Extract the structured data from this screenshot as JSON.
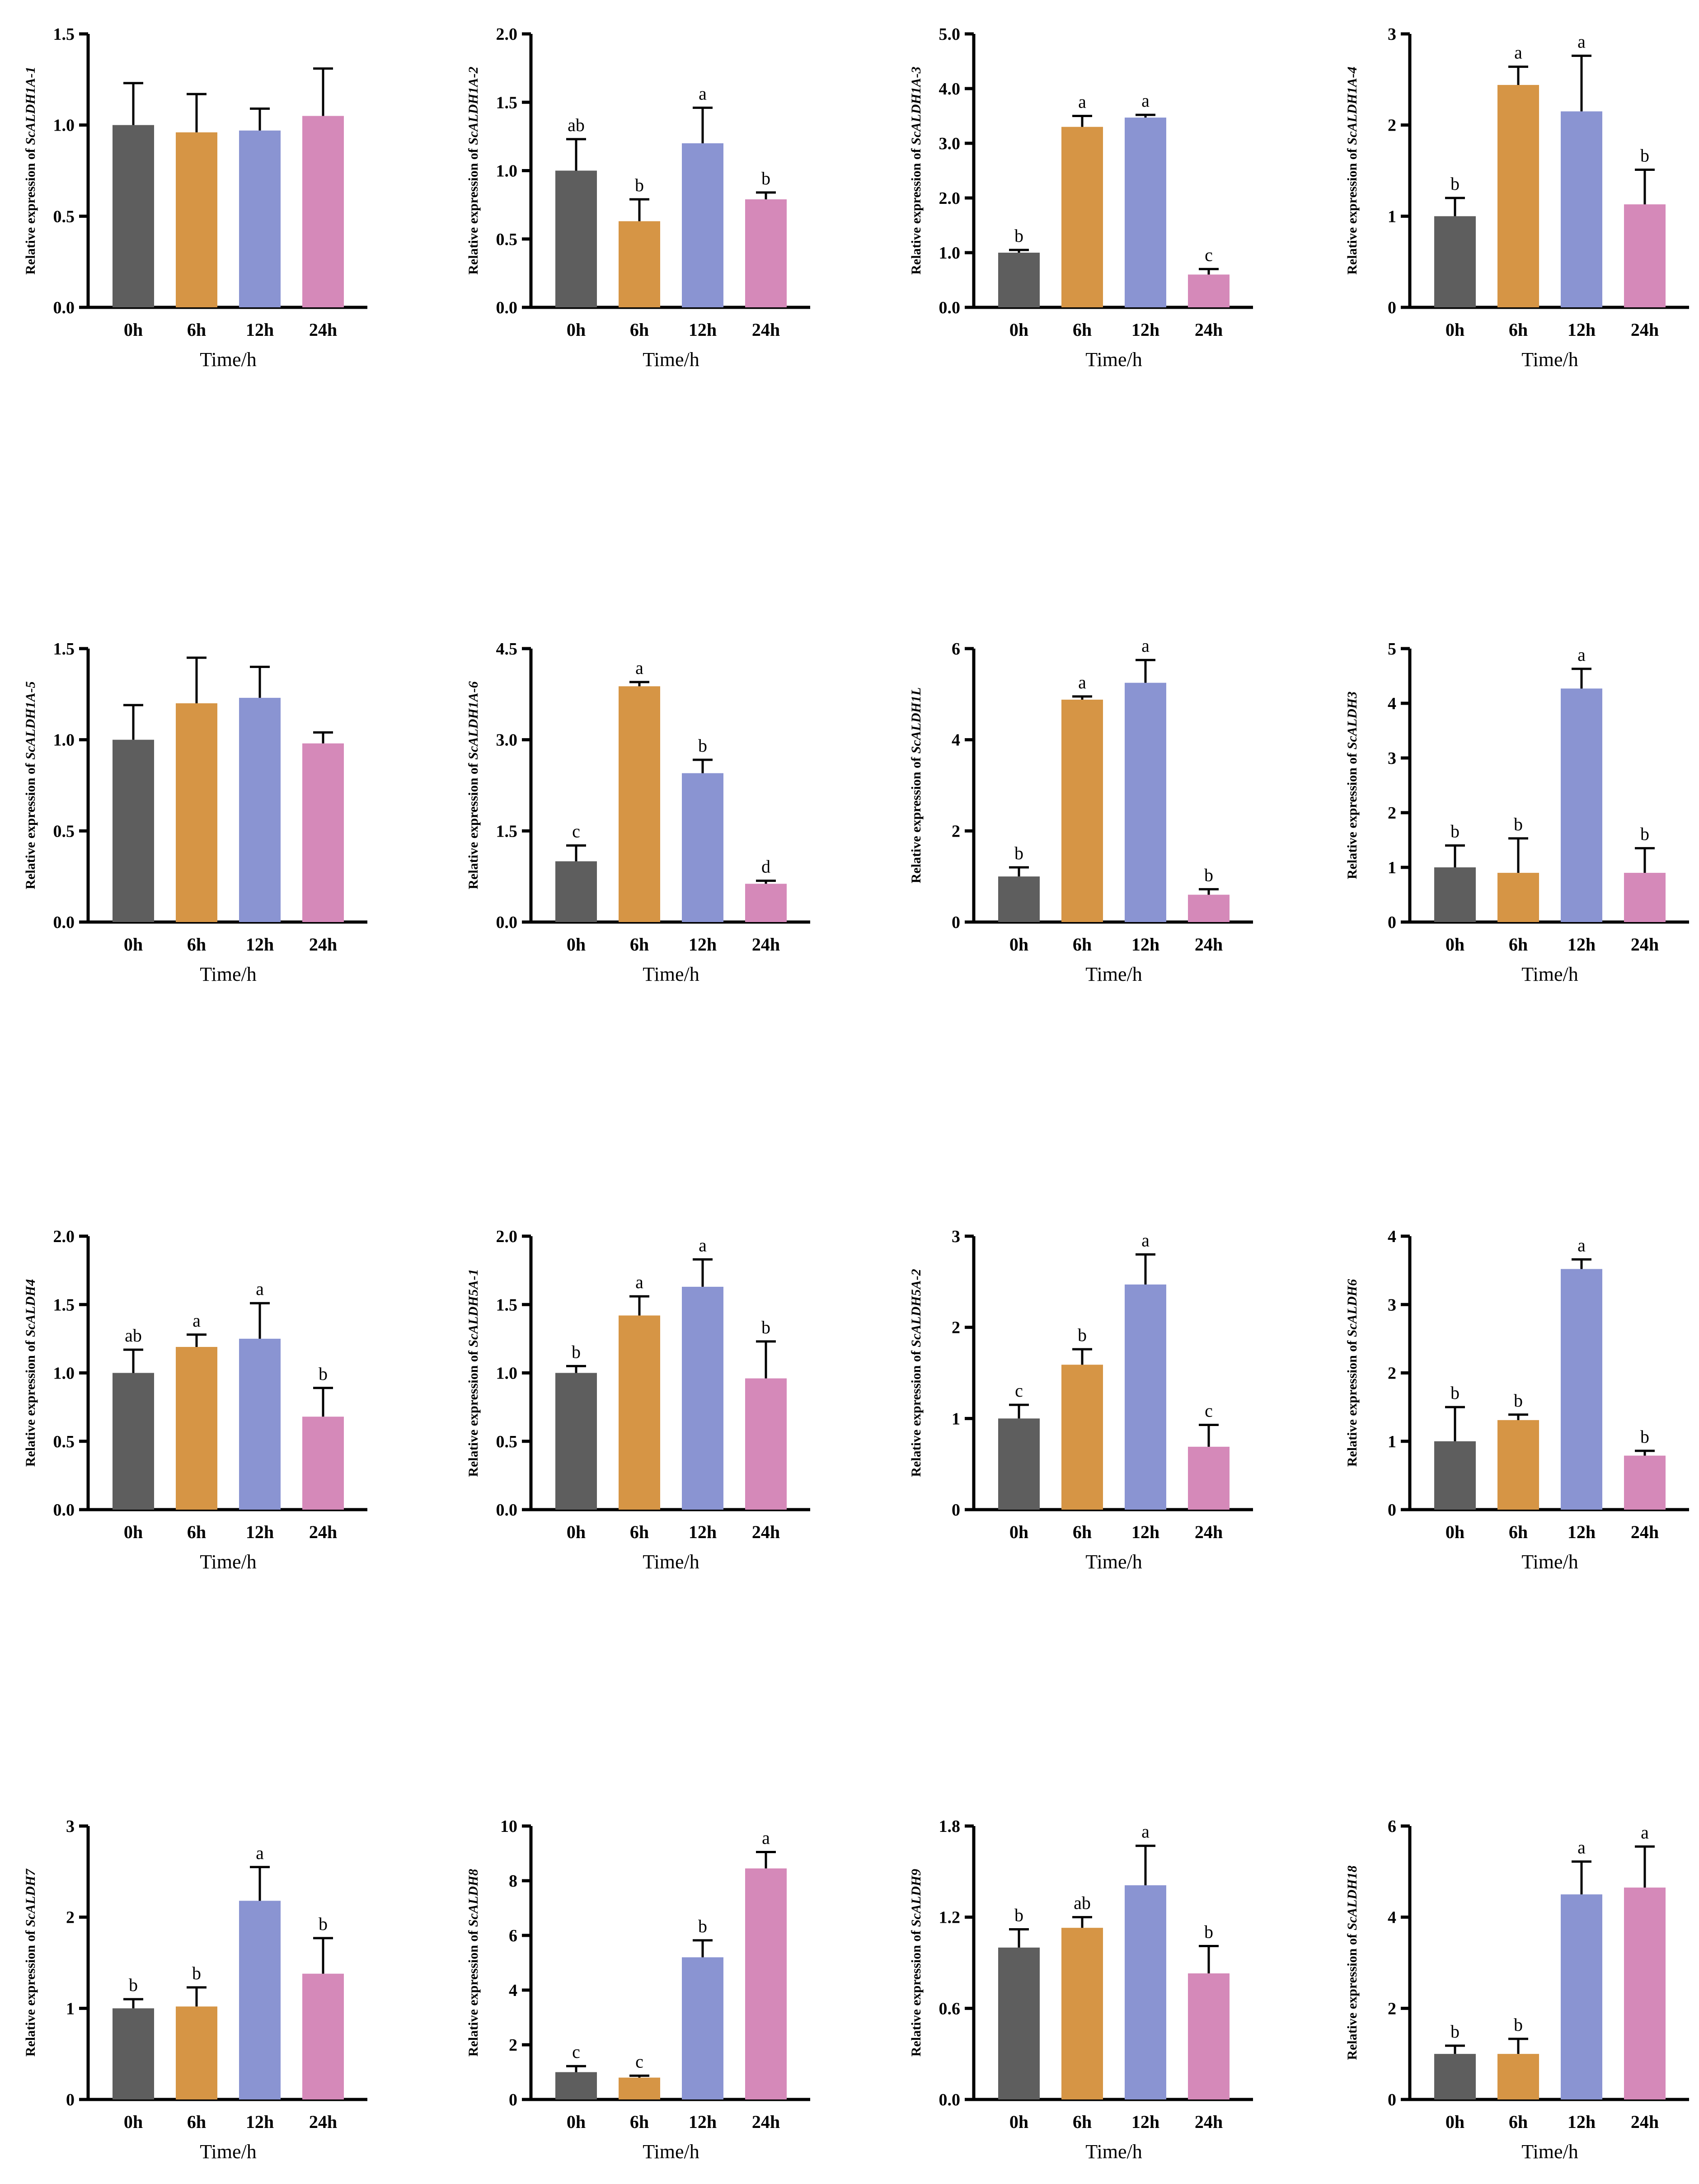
{
  "colors": [
    "#5e5e5e",
    "#d69545",
    "#8a94d2",
    "#d589b9"
  ],
  "chart_data": [
    {
      "type": "bar",
      "ylabel_prefix": "Relative expression of ",
      "gene": "ScALDH1A-1",
      "xlabel": "Time/h",
      "categories": [
        "0h",
        "6h",
        "12h",
        "24h"
      ],
      "values": [
        1.0,
        0.96,
        0.97,
        1.05
      ],
      "errors": [
        0.23,
        0.21,
        0.12,
        0.26
      ],
      "letters": [
        "",
        "",
        "",
        ""
      ],
      "ylim": [
        0,
        1.5
      ],
      "ticks": [
        "0.0",
        "0.5",
        "1.0",
        "1.5"
      ]
    },
    {
      "type": "bar",
      "ylabel_prefix": "Relative expression of ",
      "gene": "ScALDH1A-2",
      "xlabel": "Time/h",
      "categories": [
        "0h",
        "6h",
        "12h",
        "24h"
      ],
      "values": [
        1.0,
        0.63,
        1.2,
        0.79
      ],
      "errors": [
        0.23,
        0.16,
        0.26,
        0.05
      ],
      "letters": [
        "ab",
        "b",
        "a",
        "b"
      ],
      "ylim": [
        0,
        2.0
      ],
      "ticks": [
        "0.0",
        "0.5",
        "1.0",
        "1.5",
        "2.0"
      ]
    },
    {
      "type": "bar",
      "ylabel_prefix": "Relative expression of ",
      "gene": "ScALDH1A-3",
      "xlabel": "Time/h",
      "categories": [
        "0h",
        "6h",
        "12h",
        "24h"
      ],
      "values": [
        1.0,
        3.3,
        3.47,
        0.6
      ],
      "errors": [
        0.05,
        0.2,
        0.05,
        0.1
      ],
      "letters": [
        "b",
        "a",
        "a",
        "c"
      ],
      "ylim": [
        0,
        5.0
      ],
      "ticks": [
        "0.0",
        "1.0",
        "2.0",
        "3.0",
        "4.0",
        "5.0"
      ]
    },
    {
      "type": "bar",
      "ylabel_prefix": "Relative expression of ",
      "gene": "ScALDH1A-4",
      "xlabel": "Time/h",
      "categories": [
        "0h",
        "6h",
        "12h",
        "24h"
      ],
      "values": [
        1.0,
        2.44,
        2.15,
        1.13
      ],
      "errors": [
        0.2,
        0.2,
        0.61,
        0.38
      ],
      "letters": [
        "b",
        "a",
        "a",
        "b"
      ],
      "ylim": [
        0,
        3
      ],
      "ticks": [
        "0",
        "1",
        "2",
        "3"
      ]
    },
    {
      "type": "bar",
      "ylabel_prefix": "Relative expression of ",
      "gene": "ScALDH1A-5",
      "xlabel": "Time/h",
      "categories": [
        "0h",
        "6h",
        "12h",
        "24h"
      ],
      "values": [
        1.0,
        1.2,
        1.23,
        0.98
      ],
      "errors": [
        0.19,
        0.25,
        0.17,
        0.06
      ],
      "letters": [
        "",
        "",
        "",
        ""
      ],
      "ylim": [
        0,
        1.5
      ],
      "ticks": [
        "0.0",
        "0.5",
        "1.0",
        "1.5"
      ]
    },
    {
      "type": "bar",
      "ylabel_prefix": "Relative expression of ",
      "gene": "ScALDH1A-6",
      "xlabel": "Time/h",
      "categories": [
        "0h",
        "6h",
        "12h",
        "24h"
      ],
      "values": [
        1.0,
        3.88,
        2.45,
        0.63
      ],
      "errors": [
        0.26,
        0.07,
        0.22,
        0.05
      ],
      "letters": [
        "c",
        "a",
        "b",
        "d"
      ],
      "ylim": [
        0,
        4.5
      ],
      "ticks": [
        "0.0",
        "1.5",
        "3.0",
        "4.5"
      ]
    },
    {
      "type": "bar",
      "ylabel_prefix": "Relative expression of ",
      "gene": "ScALDH1L",
      "xlabel": "Time/h",
      "categories": [
        "0h",
        "6h",
        "12h",
        "24h"
      ],
      "values": [
        1.0,
        4.88,
        5.25,
        0.6
      ],
      "errors": [
        0.2,
        0.07,
        0.5,
        0.12
      ],
      "letters": [
        "b",
        "a",
        "a",
        "b"
      ],
      "ylim": [
        0,
        6
      ],
      "ticks": [
        "0",
        "2",
        "4",
        "6"
      ]
    },
    {
      "type": "bar",
      "ylabel_prefix": "Relative expression of ",
      "gene": "ScALDH3",
      "xlabel": "Time/h",
      "categories": [
        "0h",
        "6h",
        "12h",
        "24h"
      ],
      "values": [
        1.0,
        0.9,
        4.27,
        0.9
      ],
      "errors": [
        0.4,
        0.63,
        0.36,
        0.45
      ],
      "letters": [
        "b",
        "b",
        "a",
        "b"
      ],
      "ylim": [
        0,
        5
      ],
      "ticks": [
        "0",
        "1",
        "2",
        "3",
        "4",
        "5"
      ]
    },
    {
      "type": "bar",
      "ylabel_prefix": "Relative expression of ",
      "gene": "ScALDH4",
      "xlabel": "Time/h",
      "categories": [
        "0h",
        "6h",
        "12h",
        "24h"
      ],
      "values": [
        1.0,
        1.19,
        1.25,
        0.68
      ],
      "errors": [
        0.17,
        0.09,
        0.26,
        0.21
      ],
      "letters": [
        "ab",
        "a",
        "a",
        "b"
      ],
      "ylim": [
        0,
        2.0
      ],
      "ticks": [
        "0.0",
        "0.5",
        "1.0",
        "1.5",
        "2.0"
      ]
    },
    {
      "type": "bar",
      "ylabel_prefix": "Relative expression of ",
      "gene": "ScALDH5A-1",
      "xlabel": "Time/h",
      "categories": [
        "0h",
        "6h",
        "12h",
        "24h"
      ],
      "values": [
        1.0,
        1.42,
        1.63,
        0.96
      ],
      "errors": [
        0.05,
        0.14,
        0.2,
        0.27
      ],
      "letters": [
        "b",
        "a",
        "a",
        "b"
      ],
      "ylim": [
        0,
        2.0
      ],
      "ticks": [
        "0.0",
        "0.5",
        "1.0",
        "1.5",
        "2.0"
      ]
    },
    {
      "type": "bar",
      "ylabel_prefix": "Relative expression of ",
      "gene": "ScALDH5A-2",
      "xlabel": "Time/h",
      "categories": [
        "0h",
        "6h",
        "12h",
        "24h"
      ],
      "values": [
        1.0,
        1.59,
        2.47,
        0.69
      ],
      "errors": [
        0.15,
        0.17,
        0.33,
        0.24
      ],
      "letters": [
        "c",
        "b",
        "a",
        "c"
      ],
      "ylim": [
        0,
        3
      ],
      "ticks": [
        "0",
        "1",
        "2",
        "3"
      ]
    },
    {
      "type": "bar",
      "ylabel_prefix": "Relative expression of ",
      "gene": "ScALDH6",
      "xlabel": "Time/h",
      "categories": [
        "0h",
        "6h",
        "12h",
        "24h"
      ],
      "values": [
        1.0,
        1.31,
        3.52,
        0.79
      ],
      "errors": [
        0.5,
        0.08,
        0.14,
        0.07
      ],
      "letters": [
        "b",
        "b",
        "a",
        "b"
      ],
      "ylim": [
        0,
        4
      ],
      "ticks": [
        "0",
        "1",
        "2",
        "3",
        "4"
      ]
    },
    {
      "type": "bar",
      "ylabel_prefix": "Relative expression of ",
      "gene": "ScALDH7",
      "xlabel": "Time/h",
      "categories": [
        "0h",
        "6h",
        "12h",
        "24h"
      ],
      "values": [
        1.0,
        1.02,
        2.18,
        1.38
      ],
      "errors": [
        0.1,
        0.21,
        0.37,
        0.39
      ],
      "letters": [
        "b",
        "b",
        "a",
        "b"
      ],
      "ylim": [
        0,
        3
      ],
      "ticks": [
        "0",
        "1",
        "2",
        "3"
      ]
    },
    {
      "type": "bar",
      "ylabel_prefix": "Relative expression of ",
      "gene": "ScALDH8",
      "xlabel": "Time/h",
      "categories": [
        "0h",
        "6h",
        "12h",
        "24h"
      ],
      "values": [
        1.0,
        0.8,
        5.2,
        8.45
      ],
      "errors": [
        0.22,
        0.07,
        0.62,
        0.6
      ],
      "letters": [
        "c",
        "c",
        "b",
        "a"
      ],
      "ylim": [
        0,
        10
      ],
      "ticks": [
        "0",
        "2",
        "4",
        "6",
        "8",
        "10"
      ]
    },
    {
      "type": "bar",
      "ylabel_prefix": "Relative expression of ",
      "gene": "ScALDH9",
      "xlabel": "Time/h",
      "categories": [
        "0h",
        "6h",
        "12h",
        "24h"
      ],
      "values": [
        1.0,
        1.13,
        1.41,
        0.83
      ],
      "errors": [
        0.12,
        0.07,
        0.26,
        0.18
      ],
      "letters": [
        "b",
        "ab",
        "a",
        "b"
      ],
      "ylim": [
        0,
        1.8
      ],
      "ticks": [
        "0.0",
        "0.6",
        "1.2",
        "1.8"
      ]
    },
    {
      "type": "bar",
      "ylabel_prefix": "Relative expression of ",
      "gene": "ScALDH18",
      "xlabel": "Time/h",
      "categories": [
        "0h",
        "6h",
        "12h",
        "24h"
      ],
      "values": [
        1.0,
        1.0,
        4.5,
        4.65
      ],
      "errors": [
        0.18,
        0.33,
        0.72,
        0.9
      ],
      "letters": [
        "b",
        "b",
        "a",
        "a"
      ],
      "ylim": [
        0,
        6
      ],
      "ticks": [
        "0",
        "2",
        "4",
        "6"
      ]
    }
  ]
}
